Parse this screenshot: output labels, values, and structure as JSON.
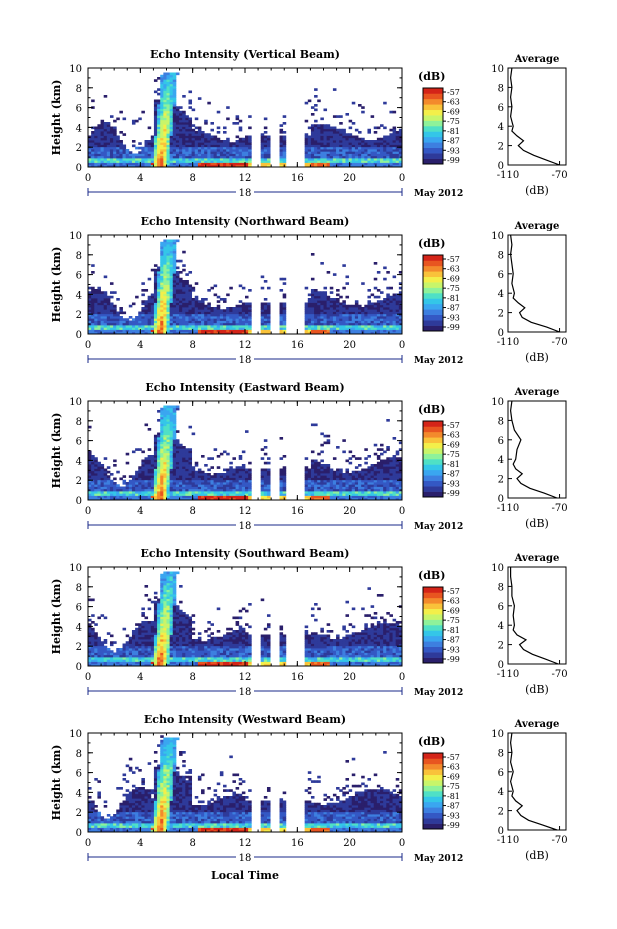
{
  "colorbar": {
    "unit": "(dB)",
    "ticks": [
      "-57",
      "-63",
      "-69",
      "-75",
      "-81",
      "-87",
      "-93",
      "-99"
    ],
    "colors": [
      "#2a1f6b",
      "#2e3a9a",
      "#3458c4",
      "#3d7fe0",
      "#3aa6f0",
      "#34c6e8",
      "#4fe0c6",
      "#8ef29a",
      "#c8f56a",
      "#f3ef4a",
      "#f9c23a",
      "#f38a2c",
      "#e85520",
      "#d42418"
    ]
  },
  "shared": {
    "x_ticks": [
      "0",
      "4",
      "8",
      "12",
      "16",
      "20",
      "0"
    ],
    "y_ticks": [
      "0",
      "2",
      "4",
      "6",
      "8",
      "10"
    ],
    "ylabel": "Height (km)",
    "date_center": "18",
    "date_label": "May 2012",
    "xlabel": "Local Time",
    "avg_title": "Average",
    "avg_xticks": [
      "-110",
      "-70"
    ],
    "avg_xlabel": "(dB)"
  },
  "chart_data": [
    {
      "type": "heatmap",
      "title": "Echo Intensity (Vertical Beam)",
      "x_range_hours": [
        0,
        24
      ],
      "y_range_km": [
        0,
        10
      ],
      "average_profile": {
        "height_km": [
          0,
          0.5,
          1,
          1.5,
          2,
          2.5,
          3,
          3.5,
          4,
          5,
          6,
          7,
          8,
          9,
          10
        ],
        "db": [
          -70,
          -80,
          -90,
          -98,
          -102,
          -98,
          -103,
          -107,
          -106,
          -108,
          -107,
          -108,
          -107,
          -108,
          -107
        ]
      }
    },
    {
      "type": "heatmap",
      "title": "Echo Intensity (Northward Beam)",
      "x_range_hours": [
        0,
        24
      ],
      "y_range_km": [
        0,
        10
      ],
      "average_profile": {
        "height_km": [
          0,
          0.5,
          1,
          1.5,
          2,
          2.5,
          3,
          3.5,
          4,
          5,
          6,
          7,
          8,
          9,
          10
        ],
        "db": [
          -70,
          -80,
          -92,
          -99,
          -101,
          -97,
          -102,
          -106,
          -105,
          -107,
          -106,
          -107,
          -108,
          -107,
          -108
        ]
      }
    },
    {
      "type": "heatmap",
      "title": "Echo Intensity (Eastward Beam)",
      "x_range_hours": [
        0,
        24
      ],
      "y_range_km": [
        0,
        10
      ],
      "average_profile": {
        "height_km": [
          0,
          0.5,
          1,
          1.5,
          2,
          2.5,
          3,
          3.5,
          4,
          5,
          6,
          7,
          8,
          9,
          10
        ],
        "db": [
          -72,
          -82,
          -93,
          -100,
          -103,
          -99,
          -104,
          -106,
          -104,
          -103,
          -100,
          -105,
          -107,
          -108,
          -107
        ]
      }
    },
    {
      "type": "heatmap",
      "title": "Echo Intensity (Southward Beam)",
      "x_range_hours": [
        0,
        24
      ],
      "y_range_km": [
        0,
        10
      ],
      "average_profile": {
        "height_km": [
          0,
          0.5,
          1,
          1.5,
          2,
          2.5,
          3,
          3.5,
          4,
          5,
          6,
          7,
          8,
          9,
          10
        ],
        "db": [
          -71,
          -81,
          -91,
          -98,
          -101,
          -96,
          -103,
          -106,
          -105,
          -106,
          -105,
          -107,
          -107,
          -108,
          -108
        ]
      }
    },
    {
      "type": "heatmap",
      "title": "Echo Intensity (Westward Beam)",
      "x_range_hours": [
        0,
        24
      ],
      "y_range_km": [
        0,
        10
      ],
      "average_profile": {
        "height_km": [
          0,
          0.5,
          1,
          1.5,
          2,
          2.5,
          3,
          3.5,
          4,
          5,
          6,
          7,
          8,
          9,
          10
        ],
        "db": [
          -72,
          -83,
          -94,
          -100,
          -103,
          -99,
          -104,
          -107,
          -106,
          -108,
          -106,
          -108,
          -107,
          -108,
          -107
        ]
      }
    }
  ]
}
